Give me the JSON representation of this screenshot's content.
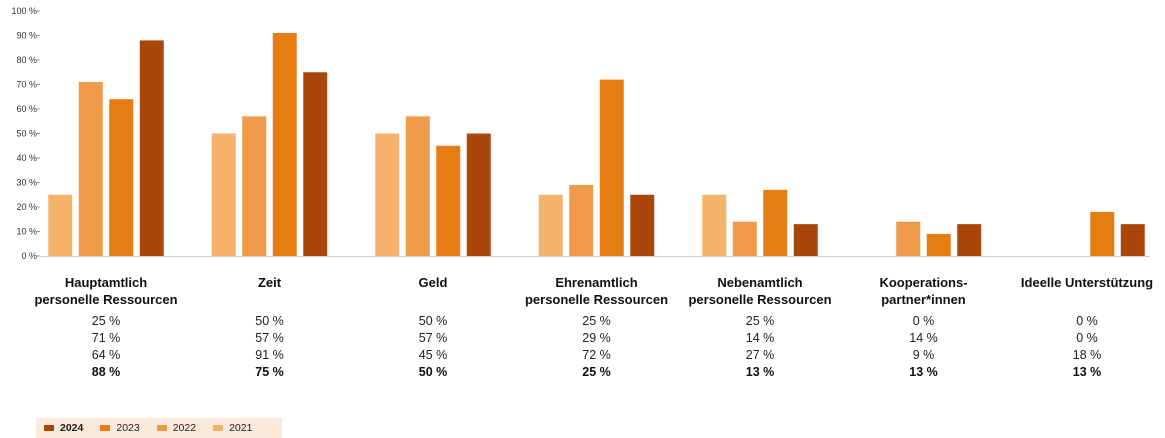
{
  "chart_data": {
    "type": "bar",
    "ylim": [
      0,
      100
    ],
    "yticks": [
      {
        "value": 0,
        "label": "0 %"
      },
      {
        "value": 10,
        "label": "10 %"
      },
      {
        "value": 20,
        "label": "20 %"
      },
      {
        "value": 30,
        "label": "30 %"
      },
      {
        "value": 40,
        "label": "40 %"
      },
      {
        "value": 50,
        "label": "50 %"
      },
      {
        "value": 60,
        "label": "60 %"
      },
      {
        "value": 70,
        "label": "70 %"
      },
      {
        "value": 80,
        "label": "80 %"
      },
      {
        "value": 90,
        "label": "90 %"
      },
      {
        "value": 100,
        "label": "100 %"
      }
    ],
    "categories": [
      [
        "Hauptamtlich",
        "personelle Ressourcen"
      ],
      [
        "Zeit"
      ],
      [
        "Geld"
      ],
      [
        "Ehrenamtlich",
        "personelle Ressourcen"
      ],
      [
        "Nebenamtlich",
        "personelle Ressourcen"
      ],
      [
        "Kooperations-",
        "partner*innen"
      ],
      [
        "Ideelle Unterstützung"
      ]
    ],
    "series": [
      {
        "name": "2021",
        "color": "#f5b26b",
        "values": [
          25,
          50,
          50,
          25,
          25,
          0,
          0
        ],
        "labels": [
          "25 %",
          "50 %",
          "50 %",
          "25 %",
          "25 %",
          "0 %",
          "0 %"
        ]
      },
      {
        "name": "2022",
        "color": "#ee9a48",
        "values": [
          71,
          57,
          57,
          29,
          14,
          14,
          0
        ],
        "labels": [
          "71 %",
          "57 %",
          "57 %",
          "29 %",
          "14 %",
          "14 %",
          "0 %"
        ]
      },
      {
        "name": "2023",
        "color": "#e57d12",
        "values": [
          64,
          91,
          45,
          72,
          27,
          9,
          18
        ],
        "labels": [
          "64 %",
          "91 %",
          "45 %",
          "72 %",
          "27 %",
          "9 %",
          "18 %"
        ]
      },
      {
        "name": "2024",
        "color": "#a9470b",
        "values": [
          88,
          75,
          50,
          25,
          13,
          13,
          13
        ],
        "labels": [
          "88 %",
          "75 %",
          "50 %",
          "25 %",
          "13 %",
          "13 %",
          "13 %"
        ]
      }
    ],
    "legend": [
      {
        "label": "2024",
        "color": "#a9470b",
        "bold": true
      },
      {
        "label": "2023",
        "color": "#e57d12",
        "bold": false
      },
      {
        "label": "2022",
        "color": "#ee9a48",
        "bold": false
      },
      {
        "label": "2021",
        "color": "#f5b26b",
        "bold": false
      }
    ],
    "legend_position": "bottom-left",
    "grid": false
  }
}
